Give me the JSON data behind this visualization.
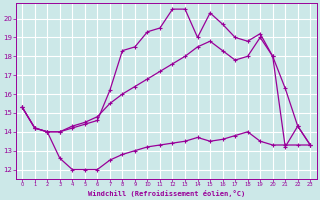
{
  "background_color": "#cce8e8",
  "grid_color": "#ffffff",
  "line_color": "#990099",
  "xlabel": "Windchill (Refroidissement éolien,°C)",
  "xlim": [
    -0.5,
    23.5
  ],
  "ylim": [
    11.5,
    20.8
  ],
  "yticks": [
    12,
    13,
    14,
    15,
    16,
    17,
    18,
    19,
    20
  ],
  "xticks": [
    0,
    1,
    2,
    3,
    4,
    5,
    6,
    7,
    8,
    9,
    10,
    11,
    12,
    13,
    14,
    15,
    16,
    17,
    18,
    19,
    20,
    21,
    22,
    23
  ],
  "line1_x": [
    0,
    1,
    2,
    3,
    4,
    5,
    6,
    7,
    8,
    9,
    10,
    11,
    12,
    13,
    14,
    15,
    16,
    17,
    18,
    19,
    20,
    21,
    22,
    23
  ],
  "line1_y": [
    15.3,
    14.2,
    14.0,
    12.6,
    12.0,
    12.0,
    12.0,
    12.5,
    12.8,
    13.0,
    13.2,
    13.3,
    13.4,
    13.5,
    13.7,
    13.5,
    13.6,
    13.8,
    14.0,
    13.5,
    13.3,
    13.3,
    13.3,
    13.3
  ],
  "line2_x": [
    0,
    1,
    2,
    3,
    4,
    5,
    6,
    7,
    8,
    9,
    10,
    11,
    12,
    13,
    14,
    15,
    16,
    17,
    18,
    19,
    20,
    21,
    22,
    23
  ],
  "line2_y": [
    15.3,
    14.2,
    14.0,
    14.0,
    14.2,
    14.4,
    14.6,
    16.2,
    18.3,
    18.5,
    19.3,
    19.5,
    20.5,
    20.5,
    19.0,
    20.3,
    19.7,
    19.0,
    18.8,
    19.2,
    18.0,
    16.3,
    14.3,
    13.3
  ],
  "line3_x": [
    0,
    1,
    2,
    3,
    4,
    5,
    6,
    7,
    8,
    9,
    10,
    11,
    12,
    13,
    14,
    15,
    16,
    17,
    18,
    19,
    20,
    21,
    22,
    23
  ],
  "line3_y": [
    15.3,
    14.2,
    14.0,
    14.0,
    14.3,
    14.5,
    14.8,
    15.5,
    16.0,
    16.4,
    16.8,
    17.2,
    17.6,
    18.0,
    18.5,
    18.8,
    18.3,
    17.8,
    18.0,
    19.0,
    18.0,
    13.2,
    14.3,
    13.3
  ],
  "marker": "+",
  "markersize": 3.5,
  "linewidth": 0.9
}
